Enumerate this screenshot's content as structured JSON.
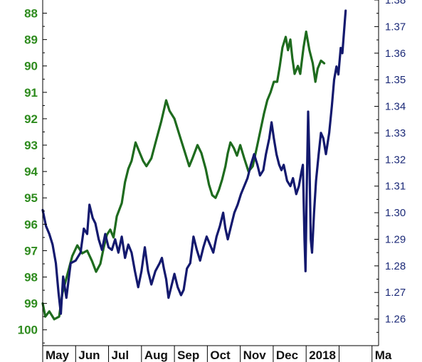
{
  "chart_data": {
    "type": "line",
    "title": "",
    "x_tick_labels": [
      "May",
      "Jun",
      "Jul",
      "Aug",
      "Sep",
      "Oct",
      "Nov",
      "Dec",
      "2018",
      "",
      "Ma"
    ],
    "left_axis": {
      "inverted": true,
      "range": [
        87.5,
        100.6
      ],
      "ticks": [
        88,
        89,
        90,
        91,
        92,
        93,
        94,
        95,
        96,
        97,
        98,
        99,
        100
      ]
    },
    "right_axis": {
      "range": [
        1.25,
        1.38
      ],
      "ticks": [
        1.26,
        1.27,
        1.28,
        1.29,
        1.3,
        1.31,
        1.32,
        1.33,
        1.34,
        1.35,
        1.36,
        1.37,
        1.38
      ]
    },
    "grid": false,
    "series": [
      {
        "axis": "left",
        "color": "#1e6b1e",
        "points": [
          [
            0,
            99.0
          ],
          [
            0.08,
            99.5
          ],
          [
            0.2,
            99.3
          ],
          [
            0.35,
            99.6
          ],
          [
            0.5,
            99.5
          ],
          [
            0.6,
            98.6
          ],
          [
            0.75,
            97.9
          ],
          [
            0.9,
            97.2
          ],
          [
            1.05,
            96.8
          ],
          [
            1.2,
            97.1
          ],
          [
            1.35,
            97.0
          ],
          [
            1.5,
            97.4
          ],
          [
            1.62,
            97.8
          ],
          [
            1.75,
            97.5
          ],
          [
            1.85,
            96.9
          ],
          [
            1.95,
            96.4
          ],
          [
            2.05,
            96.2
          ],
          [
            2.15,
            96.5
          ],
          [
            2.25,
            95.7
          ],
          [
            2.4,
            95.2
          ],
          [
            2.5,
            94.4
          ],
          [
            2.6,
            93.9
          ],
          [
            2.7,
            93.6
          ],
          [
            2.82,
            92.9
          ],
          [
            2.95,
            93.3
          ],
          [
            3.05,
            93.6
          ],
          [
            3.15,
            93.8
          ],
          [
            3.3,
            93.5
          ],
          [
            3.45,
            92.8
          ],
          [
            3.6,
            92.1
          ],
          [
            3.75,
            91.3
          ],
          [
            3.85,
            91.7
          ],
          [
            4.0,
            92.0
          ],
          [
            4.15,
            92.6
          ],
          [
            4.3,
            93.2
          ],
          [
            4.45,
            93.8
          ],
          [
            4.55,
            93.5
          ],
          [
            4.7,
            93.0
          ],
          [
            4.82,
            93.3
          ],
          [
            4.95,
            93.9
          ],
          [
            5.05,
            94.5
          ],
          [
            5.15,
            94.9
          ],
          [
            5.25,
            95.0
          ],
          [
            5.35,
            94.7
          ],
          [
            5.45,
            94.3
          ],
          [
            5.55,
            93.8
          ],
          [
            5.62,
            93.3
          ],
          [
            5.7,
            92.9
          ],
          [
            5.8,
            93.1
          ],
          [
            5.9,
            93.4
          ],
          [
            6.0,
            93.0
          ],
          [
            6.12,
            93.5
          ],
          [
            6.25,
            94.0
          ],
          [
            6.38,
            93.8
          ],
          [
            6.5,
            93.1
          ],
          [
            6.62,
            92.4
          ],
          [
            6.72,
            91.8
          ],
          [
            6.82,
            91.3
          ],
          [
            6.92,
            91.0
          ],
          [
            7.02,
            90.6
          ],
          [
            7.12,
            90.6
          ],
          [
            7.2,
            90.0
          ],
          [
            7.28,
            89.3
          ],
          [
            7.38,
            88.9
          ],
          [
            7.45,
            89.4
          ],
          [
            7.52,
            89.0
          ],
          [
            7.58,
            89.7
          ],
          [
            7.65,
            90.3
          ],
          [
            7.75,
            90.0
          ],
          [
            7.82,
            90.3
          ],
          [
            7.92,
            89.3
          ],
          [
            8.0,
            88.7
          ],
          [
            8.1,
            89.4
          ],
          [
            8.2,
            89.9
          ],
          [
            8.28,
            90.6
          ],
          [
            8.35,
            90.1
          ],
          [
            8.45,
            89.8
          ],
          [
            8.55,
            89.9
          ]
        ]
      },
      {
        "axis": "right",
        "color": "#13196e",
        "points": [
          [
            0,
            1.301
          ],
          [
            0.1,
            1.295
          ],
          [
            0.2,
            1.292
          ],
          [
            0.3,
            1.288
          ],
          [
            0.4,
            1.281
          ],
          [
            0.48,
            1.27
          ],
          [
            0.55,
            1.262
          ],
          [
            0.62,
            1.276
          ],
          [
            0.72,
            1.268
          ],
          [
            0.85,
            1.281
          ],
          [
            1.0,
            1.282
          ],
          [
            1.15,
            1.285
          ],
          [
            1.25,
            1.294
          ],
          [
            1.35,
            1.292
          ],
          [
            1.42,
            1.303
          ],
          [
            1.52,
            1.298
          ],
          [
            1.6,
            1.296
          ],
          [
            1.7,
            1.29
          ],
          [
            1.8,
            1.286
          ],
          [
            1.9,
            1.292
          ],
          [
            2.0,
            1.287
          ],
          [
            2.1,
            1.286
          ],
          [
            2.2,
            1.29
          ],
          [
            2.3,
            1.285
          ],
          [
            2.4,
            1.291
          ],
          [
            2.5,
            1.283
          ],
          [
            2.6,
            1.288
          ],
          [
            2.7,
            1.285
          ],
          [
            2.8,
            1.278
          ],
          [
            2.9,
            1.272
          ],
          [
            3.0,
            1.278
          ],
          [
            3.1,
            1.287
          ],
          [
            3.2,
            1.278
          ],
          [
            3.3,
            1.273
          ],
          [
            3.42,
            1.278
          ],
          [
            3.55,
            1.281
          ],
          [
            3.62,
            1.283
          ],
          [
            3.68,
            1.279
          ],
          [
            3.75,
            1.275
          ],
          [
            3.82,
            1.268
          ],
          [
            3.9,
            1.272
          ],
          [
            4.0,
            1.277
          ],
          [
            4.1,
            1.272
          ],
          [
            4.2,
            1.269
          ],
          [
            4.28,
            1.271
          ],
          [
            4.38,
            1.279
          ],
          [
            4.48,
            1.281
          ],
          [
            4.58,
            1.291
          ],
          [
            4.68,
            1.286
          ],
          [
            4.78,
            1.282
          ],
          [
            4.88,
            1.287
          ],
          [
            4.98,
            1.291
          ],
          [
            5.08,
            1.288
          ],
          [
            5.18,
            1.285
          ],
          [
            5.28,
            1.291
          ],
          [
            5.38,
            1.295
          ],
          [
            5.48,
            1.3
          ],
          [
            5.55,
            1.294
          ],
          [
            5.62,
            1.29
          ],
          [
            5.72,
            1.295
          ],
          [
            5.82,
            1.3
          ],
          [
            5.92,
            1.303
          ],
          [
            6.02,
            1.307
          ],
          [
            6.12,
            1.31
          ],
          [
            6.22,
            1.313
          ],
          [
            6.32,
            1.318
          ],
          [
            6.42,
            1.322
          ],
          [
            6.52,
            1.318
          ],
          [
            6.6,
            1.314
          ],
          [
            6.7,
            1.316
          ],
          [
            6.78,
            1.322
          ],
          [
            6.88,
            1.328
          ],
          [
            6.95,
            1.334
          ],
          [
            7.02,
            1.328
          ],
          [
            7.1,
            1.322
          ],
          [
            7.18,
            1.318
          ],
          [
            7.25,
            1.316
          ],
          [
            7.32,
            1.318
          ],
          [
            7.42,
            1.312
          ],
          [
            7.52,
            1.31
          ],
          [
            7.6,
            1.313
          ],
          [
            7.7,
            1.307
          ],
          [
            7.78,
            1.31
          ],
          [
            7.85,
            1.315
          ],
          [
            7.9,
            1.318
          ],
          [
            7.95,
            1.29
          ],
          [
            7.98,
            1.278
          ],
          [
            8.02,
            1.31
          ],
          [
            8.06,
            1.338
          ],
          [
            8.1,
            1.32
          ],
          [
            8.14,
            1.29
          ],
          [
            8.18,
            1.285
          ],
          [
            8.24,
            1.3
          ],
          [
            8.3,
            1.312
          ],
          [
            8.38,
            1.322
          ],
          [
            8.45,
            1.33
          ],
          [
            8.52,
            1.328
          ],
          [
            8.6,
            1.322
          ],
          [
            8.7,
            1.33
          ],
          [
            8.78,
            1.34
          ],
          [
            8.85,
            1.35
          ],
          [
            8.92,
            1.355
          ],
          [
            8.98,
            1.352
          ],
          [
            9.05,
            1.362
          ],
          [
            9.1,
            1.36
          ],
          [
            9.15,
            1.368
          ],
          [
            9.2,
            1.376
          ]
        ]
      }
    ]
  }
}
